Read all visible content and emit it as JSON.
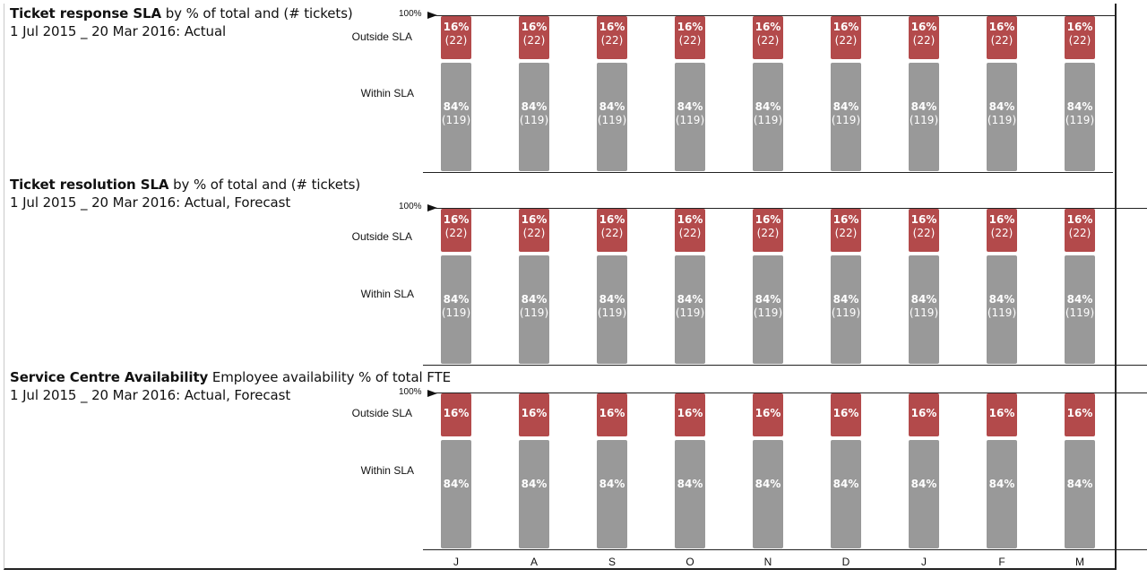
{
  "chart_data": [
    {
      "type": "bar",
      "stacked": true,
      "title_bold": "Ticket response SLA",
      "title_rest": " by % of total and (# tickets)",
      "subtitle": "1 Jul 2015 _ 20 Mar 2016: Actual",
      "top_label": "100%",
      "categories": [
        "J",
        "A",
        "S",
        "O",
        "N",
        "D",
        "J",
        "F",
        "M"
      ],
      "series": [
        {
          "name": "Outside SLA",
          "color": "#b34a4b",
          "values": [
            16,
            16,
            16,
            16,
            16,
            16,
            16,
            16,
            16
          ],
          "pct_labels": [
            "16%",
            "16%",
            "16%",
            "16%",
            "16%",
            "16%",
            "16%",
            "16%",
            "16%"
          ],
          "counts": [
            "(22)",
            "(22)",
            "(22)",
            "(22)",
            "(22)",
            "(22)",
            "(22)",
            "(22)",
            "(22)"
          ]
        },
        {
          "name": "Within SLA",
          "color": "#999999",
          "values": [
            84,
            84,
            84,
            84,
            84,
            84,
            84,
            84,
            84
          ],
          "pct_labels": [
            "84%",
            "84%",
            "84%",
            "84%",
            "84%",
            "84%",
            "84%",
            "84%",
            "84%"
          ],
          "counts": [
            "(119)",
            "(119)",
            "(119)",
            "(119)",
            "(119)",
            "(119)",
            "(119)",
            "(119)",
            "(119)"
          ]
        }
      ],
      "ylim": [
        0,
        100
      ]
    },
    {
      "type": "bar",
      "stacked": true,
      "title_bold": "Ticket resolution SLA",
      "title_rest": " by % of total and (# tickets)",
      "subtitle": "1 Jul 2015 _ 20 Mar 2016: Actual, Forecast",
      "top_label": "100%",
      "categories": [
        "J",
        "A",
        "S",
        "O",
        "N",
        "D",
        "J",
        "F",
        "M"
      ],
      "series": [
        {
          "name": "Outside SLA",
          "color": "#b34a4b",
          "values": [
            16,
            16,
            16,
            16,
            16,
            16,
            16,
            16,
            16
          ],
          "pct_labels": [
            "16%",
            "16%",
            "16%",
            "16%",
            "16%",
            "16%",
            "16%",
            "16%",
            "16%"
          ],
          "counts": [
            "(22)",
            "(22)",
            "(22)",
            "(22)",
            "(22)",
            "(22)",
            "(22)",
            "(22)",
            "(22)"
          ]
        },
        {
          "name": "Within SLA",
          "color": "#999999",
          "values": [
            84,
            84,
            84,
            84,
            84,
            84,
            84,
            84,
            84
          ],
          "pct_labels": [
            "84%",
            "84%",
            "84%",
            "84%",
            "84%",
            "84%",
            "84%",
            "84%",
            "84%"
          ],
          "counts": [
            "(119)",
            "(119)",
            "(119)",
            "(119)",
            "(119)",
            "(119)",
            "(119)",
            "(119)",
            "(119)"
          ]
        }
      ],
      "ylim": [
        0,
        100
      ]
    },
    {
      "type": "bar",
      "stacked": true,
      "title_bold": "Service Centre Availability",
      "title_rest": " Employee availability % of total FTE",
      "subtitle": "1 Jul 2015 _ 20 Mar 2016: Actual, Forecast",
      "top_label": "100%",
      "categories": [
        "J",
        "A",
        "S",
        "O",
        "N",
        "D",
        "J",
        "F",
        "M"
      ],
      "series": [
        {
          "name": "Outside SLA",
          "color": "#b34a4b",
          "values": [
            16,
            16,
            16,
            16,
            16,
            16,
            16,
            16,
            16
          ],
          "pct_labels": [
            "16%",
            "16%",
            "16%",
            "16%",
            "16%",
            "16%",
            "16%",
            "16%",
            "16%"
          ],
          "counts": []
        },
        {
          "name": "Within SLA",
          "color": "#999999",
          "values": [
            84,
            84,
            84,
            84,
            84,
            84,
            84,
            84,
            84
          ],
          "pct_labels": [
            "84%",
            "84%",
            "84%",
            "84%",
            "84%",
            "84%",
            "84%",
            "84%",
            "84%"
          ],
          "counts": []
        }
      ],
      "ylim": [
        0,
        100
      ]
    }
  ],
  "x_axis": {
    "categories": [
      "J",
      "A",
      "S",
      "O",
      "N",
      "D",
      "J",
      "F",
      "M"
    ]
  }
}
